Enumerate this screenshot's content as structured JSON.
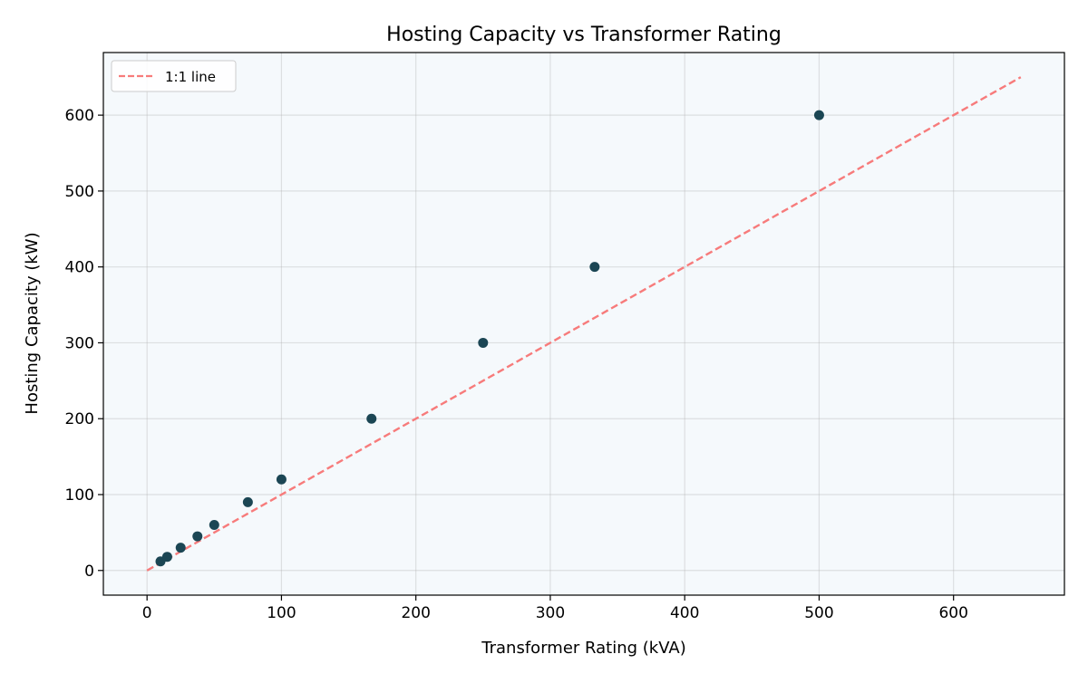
{
  "chart_data": {
    "type": "scatter",
    "title": "Hosting Capacity vs Transformer Rating",
    "xlabel": "Transformer Rating (kVA)",
    "ylabel": "Hosting Capacity (kW)",
    "xlim": [
      -32.5,
      682.5
    ],
    "ylim": [
      -32.5,
      682.5
    ],
    "xticks": [
      0,
      100,
      200,
      300,
      400,
      500,
      600
    ],
    "yticks": [
      0,
      100,
      200,
      300,
      400,
      500,
      600
    ],
    "grid": true,
    "legend_placement": "top-left",
    "points": {
      "x": [
        10,
        15,
        25,
        37.5,
        50,
        75,
        100,
        167,
        250,
        333,
        500
      ],
      "y": [
        12,
        18,
        30,
        45,
        60,
        90,
        120,
        200,
        300,
        400,
        600
      ]
    },
    "reference_line": {
      "name": "1:1 line",
      "x": [
        0,
        650
      ],
      "y": [
        0,
        650
      ],
      "style": "dashed"
    },
    "colors": {
      "points": "#1b4654",
      "reference_line": "#f77b7b",
      "plot_background": "#f5f9fc"
    }
  }
}
